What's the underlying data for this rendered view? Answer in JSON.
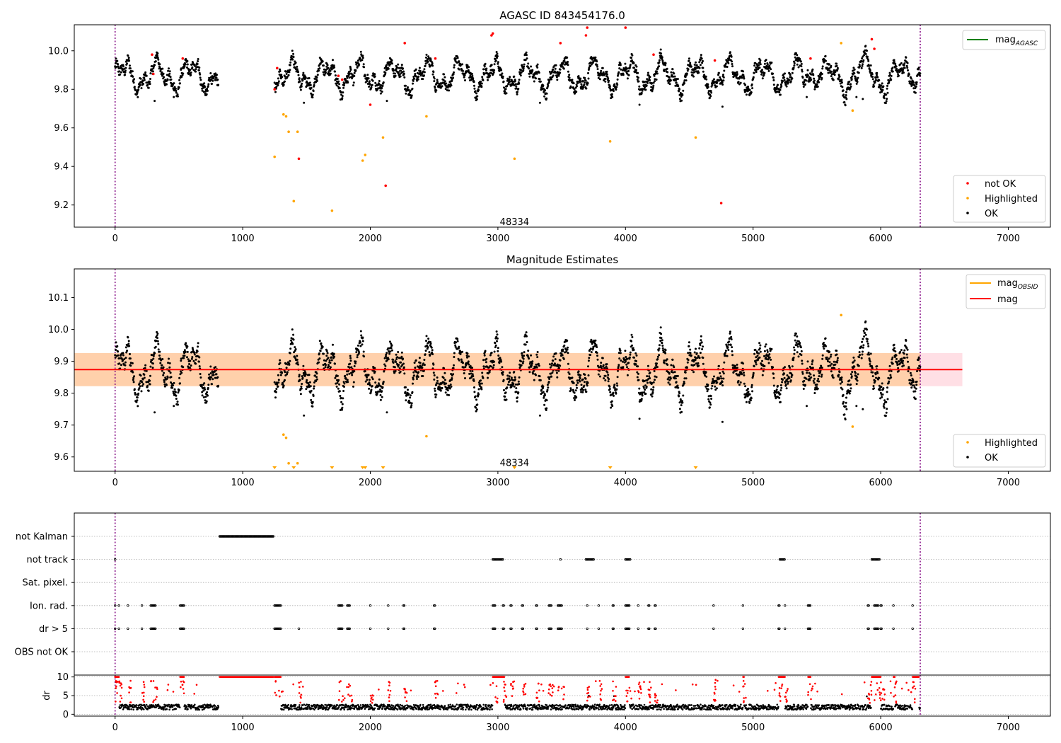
{
  "chart_data": [
    {
      "type": "scatter",
      "title": "AGASC ID 843454176.0",
      "xlim": [
        -320,
        7330
      ],
      "ylim": [
        9.085,
        10.135
      ],
      "xticks": [
        0,
        1000,
        2000,
        3000,
        4000,
        5000,
        6000,
        7000
      ],
      "xtick_labels": [
        "0",
        "1000",
        "2000",
        "3000",
        "4000",
        "5000",
        "6000",
        "7000"
      ],
      "yticks": [
        9.2,
        9.4,
        9.6,
        9.8,
        10.0
      ],
      "ytick_labels": [
        "9.2",
        "9.4",
        "9.6",
        "9.8",
        "10.0"
      ],
      "vlines": [
        0,
        6310
      ],
      "vline_color": "#800080",
      "annotation": {
        "text": "48334",
        "x": 3130,
        "y": 9.11
      },
      "legend_top": {
        "position": "upper right",
        "entries": [
          {
            "label": "mag",
            "sub": "AGASC",
            "color": "#008000"
          }
        ]
      },
      "legend_bottom": {
        "position": "lower right",
        "entries": [
          {
            "label": "not OK",
            "color": "#ff0000"
          },
          {
            "label": "Highlighted",
            "color": "#ffa500"
          },
          {
            "label": "OK",
            "color": "#000000"
          }
        ]
      },
      "series": [
        {
          "name": "not OK",
          "color": "#ff0000",
          "points": [
            [
              290,
              9.98
            ],
            [
              300,
              9.88
            ],
            [
              530,
              9.96
            ],
            [
              1250,
              9.8
            ],
            [
              1270,
              9.91
            ],
            [
              1440,
              9.44
            ],
            [
              1750,
              9.87
            ],
            [
              1780,
              9.85
            ],
            [
              2000,
              9.72
            ],
            [
              2120,
              9.3
            ],
            [
              2270,
              10.04
            ],
            [
              2510,
              9.96
            ],
            [
              2950,
              10.08
            ],
            [
              2960,
              10.09
            ],
            [
              3490,
              10.04
            ],
            [
              3690,
              10.08
            ],
            [
              3700,
              10.12
            ],
            [
              4000,
              10.12
            ],
            [
              4220,
              9.98
            ],
            [
              4700,
              9.95
            ],
            [
              4750,
              9.21
            ],
            [
              5450,
              9.96
            ],
            [
              5930,
              10.06
            ],
            [
              5950,
              10.01
            ]
          ]
        },
        {
          "name": "Highlighted",
          "color": "#ffa500",
          "points": [
            [
              1250,
              9.45
            ],
            [
              1320,
              9.67
            ],
            [
              1340,
              9.66
            ],
            [
              1360,
              9.58
            ],
            [
              1400,
              9.22
            ],
            [
              1430,
              9.58
            ],
            [
              1700,
              9.17
            ],
            [
              1940,
              9.43
            ],
            [
              1960,
              9.46
            ],
            [
              2100,
              9.55
            ],
            [
              2440,
              9.66
            ],
            [
              3130,
              9.44
            ],
            [
              3880,
              9.53
            ],
            [
              4550,
              9.55
            ],
            [
              5690,
              10.04
            ],
            [
              5780,
              9.69
            ]
          ]
        }
      ]
    },
    {
      "type": "scatter",
      "title": "Magnitude Estimates",
      "xlim": [
        -320,
        7330
      ],
      "ylim": [
        9.555,
        10.19
      ],
      "xticks": [
        0,
        1000,
        2000,
        3000,
        4000,
        5000,
        6000,
        7000
      ],
      "xtick_labels": [
        "0",
        "1000",
        "2000",
        "3000",
        "4000",
        "5000",
        "6000",
        "7000"
      ],
      "yticks": [
        9.6,
        9.7,
        9.8,
        9.9,
        10.0,
        10.1
      ],
      "ytick_labels": [
        "9.6",
        "9.7",
        "9.8",
        "9.9",
        "10.0",
        "10.1"
      ],
      "vlines": [
        0,
        6310
      ],
      "vline_color": "#800080",
      "annotation": {
        "text": "48334",
        "x": 3130,
        "y": 9.58
      },
      "mag": 9.874,
      "mag_band": [
        9.822,
        9.926
      ],
      "mag_band_x": [
        -320,
        6640
      ],
      "mag_color": "#ff0000",
      "band_color": "#ffc0cb",
      "obsid_band_color": "#ffa500",
      "highlight_markers_x": [
        1250,
        1400,
        1700,
        1940,
        1960,
        2100,
        3130,
        3880,
        4550
      ],
      "legend_top": {
        "position": "upper right",
        "entries": [
          {
            "label": "mag",
            "sub": "OBSID",
            "color": "#ffa500"
          },
          {
            "label": "mag",
            "sub": "",
            "color": "#ff0000"
          }
        ]
      },
      "legend_bottom": {
        "position": "lower right",
        "entries": [
          {
            "label": "Highlighted",
            "color": "#ffa500"
          },
          {
            "label": "OK",
            "color": "#000000"
          }
        ]
      },
      "series": [
        {
          "name": "Highlighted",
          "color": "#ffa500",
          "points": [
            [
              1320,
              9.67
            ],
            [
              1340,
              9.66
            ],
            [
              1360,
              9.58
            ],
            [
              1430,
              9.58
            ],
            [
              2440,
              9.665
            ],
            [
              5690,
              10.045
            ],
            [
              5780,
              9.695
            ]
          ]
        }
      ]
    },
    {
      "type": "scatter",
      "title": "",
      "xlim": [
        -320,
        7330
      ],
      "categories": [
        "not Kalman",
        "not track",
        "Sat. pixel.",
        "Ion. rad.",
        "dr > 5",
        "OBS not OK"
      ],
      "flag_intervals": {
        "not Kalman": [
          [
            820,
            1240
          ]
        ],
        "not track": [
          [
            0,
            5
          ],
          [
            2960,
            3040
          ],
          [
            3490,
            3495
          ],
          [
            3690,
            3750
          ],
          [
            4000,
            4040
          ],
          [
            5210,
            5250
          ],
          [
            5930,
            5990
          ]
        ],
        "Sat. pixel.": [],
        "Ion. rad.": [
          [
            0,
            5
          ],
          [
            30,
            35
          ],
          [
            100,
            105
          ],
          [
            210,
            215
          ],
          [
            280,
            320
          ],
          [
            510,
            540
          ],
          [
            1250,
            1300
          ],
          [
            1750,
            1780
          ],
          [
            1820,
            1840
          ],
          [
            2000,
            2005
          ],
          [
            2140,
            2145
          ],
          [
            2260,
            2270
          ],
          [
            2500,
            2510
          ],
          [
            2960,
            2980
          ],
          [
            3040,
            3050
          ],
          [
            3100,
            3110
          ],
          [
            3190,
            3200
          ],
          [
            3300,
            3310
          ],
          [
            3400,
            3420
          ],
          [
            3470,
            3500
          ],
          [
            3700,
            3705
          ],
          [
            3790,
            3795
          ],
          [
            3900,
            3910
          ],
          [
            4000,
            4030
          ],
          [
            4100,
            4105
          ],
          [
            4180,
            4190
          ],
          [
            4230,
            4240
          ],
          [
            4690,
            4695
          ],
          [
            4920,
            4925
          ],
          [
            5200,
            5210
          ],
          [
            5250,
            5255
          ],
          [
            5430,
            5450
          ],
          [
            5900,
            5910
          ],
          [
            5950,
            5980
          ],
          [
            6000,
            6010
          ],
          [
            6100,
            6105
          ],
          [
            6250,
            6255
          ]
        ],
        "dr > 5": [
          [
            0,
            5
          ],
          [
            30,
            35
          ],
          [
            100,
            105
          ],
          [
            210,
            215
          ],
          [
            280,
            320
          ],
          [
            510,
            540
          ],
          [
            1250,
            1300
          ],
          [
            1440,
            1445
          ],
          [
            1750,
            1780
          ],
          [
            1820,
            1840
          ],
          [
            2000,
            2005
          ],
          [
            2140,
            2145
          ],
          [
            2260,
            2270
          ],
          [
            2500,
            2510
          ],
          [
            2960,
            2980
          ],
          [
            3040,
            3050
          ],
          [
            3100,
            3110
          ],
          [
            3190,
            3200
          ],
          [
            3300,
            3310
          ],
          [
            3400,
            3420
          ],
          [
            3470,
            3500
          ],
          [
            3700,
            3705
          ],
          [
            3790,
            3795
          ],
          [
            3900,
            3910
          ],
          [
            4000,
            4030
          ],
          [
            4100,
            4105
          ],
          [
            4180,
            4190
          ],
          [
            4230,
            4240
          ],
          [
            4690,
            4695
          ],
          [
            4920,
            4925
          ],
          [
            5200,
            5210
          ],
          [
            5250,
            5255
          ],
          [
            5430,
            5450
          ],
          [
            5900,
            5910
          ],
          [
            5950,
            5980
          ],
          [
            6000,
            6010
          ],
          [
            6100,
            6105
          ],
          [
            6250,
            6255
          ]
        ],
        "OBS not OK": []
      },
      "vlines": [
        0,
        6310
      ],
      "vline_color": "#800080"
    },
    {
      "type": "scatter",
      "title": "",
      "xlim": [
        -320,
        7330
      ],
      "ylim": [
        -0.5,
        10.5
      ],
      "ylabel": "dr",
      "xticks": [
        0,
        1000,
        2000,
        3000,
        4000,
        5000,
        6000,
        7000
      ],
      "xtick_labels": [
        "0",
        "1000",
        "2000",
        "3000",
        "4000",
        "5000",
        "6000",
        "7000"
      ],
      "yticks": [
        0,
        5,
        10
      ],
      "ytick_labels": [
        "0",
        "5",
        "10"
      ],
      "vlines": [
        0,
        6310
      ],
      "vline_color": "#800080",
      "dr_threshold": 5,
      "saturated_intervals": [
        [
          0,
          30
        ],
        [
          510,
          540
        ],
        [
          820,
          1300
        ],
        [
          2960,
          3050
        ],
        [
          4000,
          4030
        ],
        [
          4920,
          4930
        ],
        [
          5200,
          5250
        ],
        [
          5430,
          5450
        ],
        [
          5930,
          6000
        ],
        [
          6100,
          6110
        ],
        [
          6250,
          6300
        ]
      ]
    }
  ]
}
